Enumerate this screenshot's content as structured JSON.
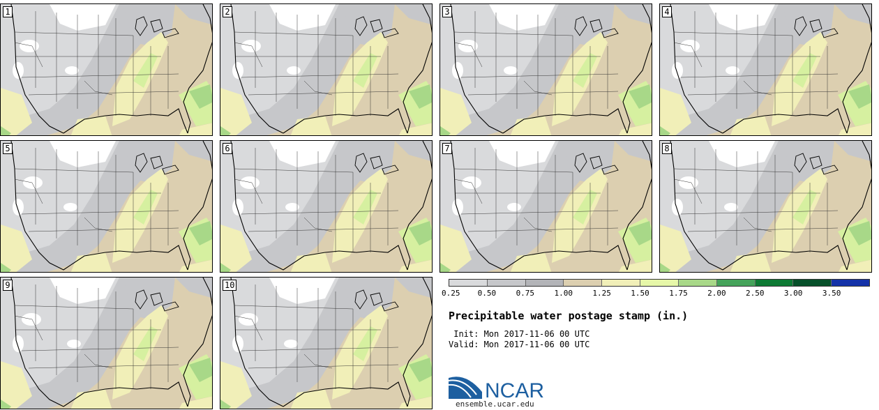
{
  "panels": [
    {
      "label": "1"
    },
    {
      "label": "2"
    },
    {
      "label": "3"
    },
    {
      "label": "4"
    },
    {
      "label": "5"
    },
    {
      "label": "6"
    },
    {
      "label": "7"
    },
    {
      "label": "8"
    },
    {
      "label": "9"
    },
    {
      "label": "10"
    }
  ],
  "colorbar": {
    "ticks": [
      "0.25",
      "0.50",
      "0.75",
      "1.00",
      "1.25",
      "1.50",
      "1.75",
      "2.00",
      "2.50",
      "3.00",
      "3.50"
    ],
    "colors": [
      "#d9dadc",
      "#c6c7ca",
      "#b3b4b8",
      "#dccfb0",
      "#f1efb8",
      "#e6f7a8",
      "#a8d888",
      "#45a35a",
      "#0d7a34",
      "#07502a",
      "#1432a8"
    ]
  },
  "title": "Precipitable water postage stamp (in.)",
  "init": " Init: Mon 2017-11-06 00 UTC",
  "valid": "Valid: Mon 2017-11-06 00 UTC",
  "logo_text": "NCAR",
  "site": "ensemble.ucar.edu",
  "map_colors": {
    "dry_white": "#ffffff",
    "light_gray": "#d9dadc",
    "gray": "#c6c7ca",
    "tan": "#dccfb0",
    "yellow": "#f1efb8",
    "light_green": "#d6f0a0",
    "green": "#a8d888",
    "outline": "#000000"
  }
}
